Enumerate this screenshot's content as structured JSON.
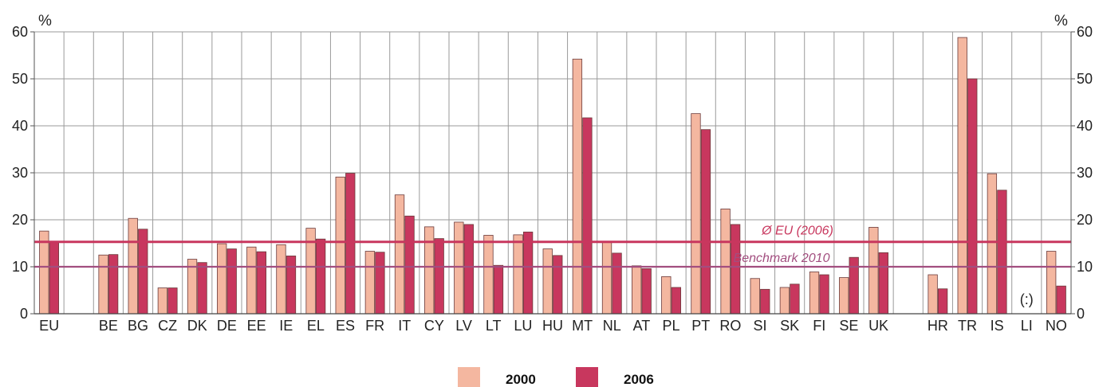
{
  "chart_data": {
    "type": "bar",
    "unit_label_left": "%",
    "unit_label_right": "%",
    "ylim": [
      0,
      60
    ],
    "yticks": [
      0,
      10,
      20,
      30,
      40,
      50,
      60
    ],
    "grid": true,
    "legend_position": "bottom-center",
    "categories": [
      "EU",
      "",
      "BE",
      "BG",
      "CZ",
      "DK",
      "DE",
      "EE",
      "IE",
      "EL",
      "ES",
      "FR",
      "IT",
      "CY",
      "LV",
      "LT",
      "LU",
      "HU",
      "MT",
      "NL",
      "AT",
      "PL",
      "PT",
      "RO",
      "SI",
      "SK",
      "FI",
      "SE",
      "UK",
      "",
      "HR",
      "TR",
      "IS",
      "LI",
      "NO"
    ],
    "series": [
      {
        "name": "2000",
        "color": "#f4b7a0",
        "values": [
          17.6,
          null,
          12.5,
          20.3,
          5.5,
          11.6,
          14.9,
          14.2,
          14.7,
          18.2,
          29.1,
          13.3,
          25.3,
          18.5,
          19.5,
          16.7,
          16.8,
          13.8,
          54.2,
          15.4,
          10.2,
          7.9,
          42.6,
          22.3,
          7.5,
          5.6,
          8.9,
          7.7,
          18.4,
          null,
          8.3,
          58.8,
          29.8,
          null,
          13.3
        ],
        "labels": [
          "",
          "",
          "",
          "",
          "",
          "",
          "",
          "",
          "",
          "",
          "",
          "",
          "",
          "",
          "",
          "",
          "",
          "",
          "",
          "",
          "",
          "",
          "",
          "",
          "",
          "",
          "",
          "",
          "",
          "",
          "",
          "",
          "",
          "(:)",
          ""
        ]
      },
      {
        "name": "2006",
        "color": "#c8375e",
        "values": [
          15.3,
          null,
          12.6,
          18.0,
          5.5,
          10.9,
          13.8,
          13.2,
          12.3,
          15.9,
          29.9,
          13.1,
          20.8,
          16.0,
          19.0,
          10.3,
          17.4,
          12.4,
          41.7,
          12.9,
          9.6,
          5.6,
          39.2,
          19.0,
          5.2,
          6.3,
          8.3,
          12.0,
          13.0,
          null,
          5.3,
          50.0,
          26.3,
          null,
          5.9
        ]
      }
    ],
    "reference_lines": [
      {
        "label": "Ø EU (2006)",
        "value": 15.3,
        "color": "#c8375e"
      },
      {
        "label": "Benchmark 2010",
        "value": 10,
        "color": "#a24e7f"
      }
    ]
  }
}
